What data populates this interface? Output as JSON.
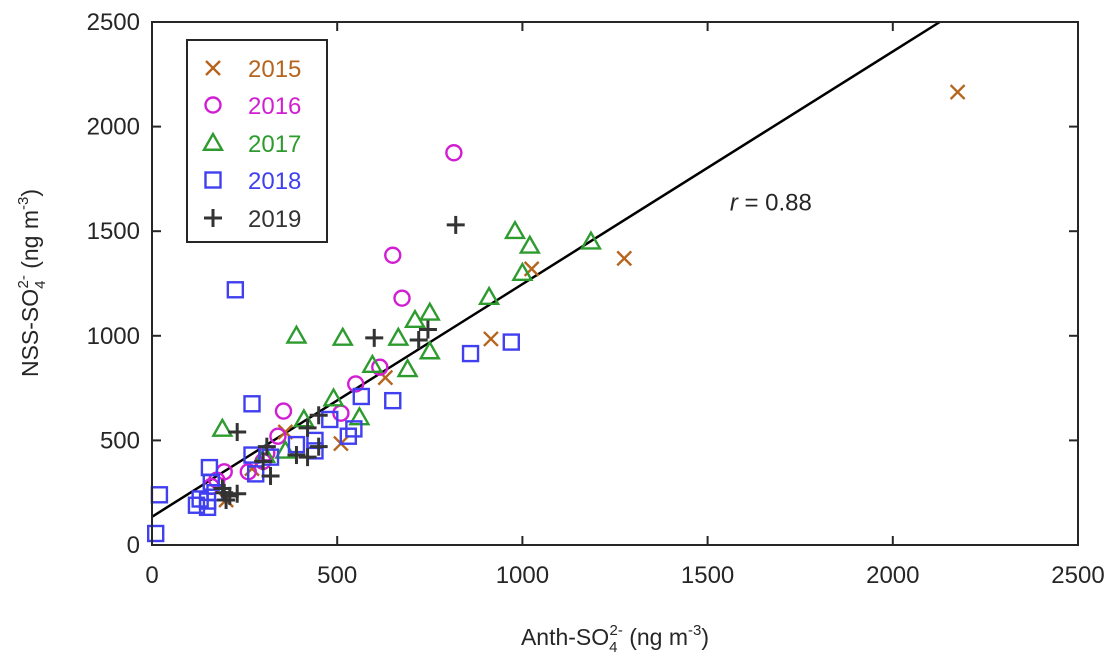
{
  "chart_data": {
    "type": "scatter",
    "xlabel": {
      "base": "Anth-SO",
      "sub": "4",
      "sup": "2-",
      "unit_pre": " (ng m",
      "unit_sup": "-3",
      "unit_post": ")"
    },
    "ylabel": {
      "base": "NSS-SO",
      "sub": "4",
      "sup": "2-",
      "unit_pre": " (ng m",
      "unit_sup": "-3",
      "unit_post": ")"
    },
    "xlim": [
      0,
      2500
    ],
    "ylim": [
      0,
      2500
    ],
    "xticks": [
      0,
      500,
      1000,
      1500,
      2000,
      2500
    ],
    "yticks": [
      0,
      500,
      1000,
      1500,
      2000,
      2500
    ],
    "grid": false,
    "legend_position": "top-left",
    "annotation": {
      "italic": "r",
      "rest": " = 0.88",
      "x": 1560,
      "y": 1600
    },
    "fit_line": {
      "intercept": 135,
      "slope": 1.112
    },
    "series": [
      {
        "name": "2015",
        "marker": "x",
        "color": "#B5651D",
        "points": [
          [
            2175,
            2165
          ],
          [
            1275,
            1370
          ],
          [
            1025,
            1320
          ],
          [
            915,
            985
          ],
          [
            630,
            800
          ],
          [
            510,
            485
          ],
          [
            360,
            540
          ],
          [
            270,
            365
          ],
          [
            200,
            215
          ]
        ]
      },
      {
        "name": "2016",
        "marker": "o",
        "color": "#D21ED2",
        "points": [
          [
            815,
            1875
          ],
          [
            650,
            1385
          ],
          [
            675,
            1180
          ],
          [
            615,
            850
          ],
          [
            550,
            770
          ],
          [
            510,
            630
          ],
          [
            355,
            640
          ],
          [
            340,
            520
          ],
          [
            310,
            440
          ],
          [
            300,
            400
          ],
          [
            260,
            350
          ],
          [
            195,
            350
          ],
          [
            175,
            310
          ],
          [
            160,
            280
          ]
        ]
      },
      {
        "name": "2017",
        "marker": "triangle",
        "color": "#2E9B2E",
        "points": [
          [
            1185,
            1450
          ],
          [
            1020,
            1430
          ],
          [
            980,
            1500
          ],
          [
            1000,
            1300
          ],
          [
            910,
            1185
          ],
          [
            750,
            1110
          ],
          [
            710,
            1075
          ],
          [
            665,
            990
          ],
          [
            750,
            925
          ],
          [
            690,
            840
          ],
          [
            595,
            860
          ],
          [
            515,
            990
          ],
          [
            390,
            1000
          ],
          [
            490,
            700
          ],
          [
            560,
            610
          ],
          [
            410,
            600
          ],
          [
            360,
            450
          ],
          [
            190,
            555
          ],
          [
            305,
            430
          ]
        ]
      },
      {
        "name": "2018",
        "marker": "square",
        "color": "#4040F0",
        "points": [
          [
            225,
            1220
          ],
          [
            270,
            675
          ],
          [
            970,
            970
          ],
          [
            860,
            915
          ],
          [
            650,
            690
          ],
          [
            565,
            710
          ],
          [
            545,
            555
          ],
          [
            530,
            520
          ],
          [
            480,
            600
          ],
          [
            440,
            500
          ],
          [
            440,
            450
          ],
          [
            390,
            480
          ],
          [
            320,
            420
          ],
          [
            280,
            340
          ],
          [
            270,
            430
          ],
          [
            155,
            370
          ],
          [
            160,
            300
          ],
          [
            170,
            250
          ],
          [
            150,
            210
          ],
          [
            130,
            220
          ],
          [
            150,
            180
          ],
          [
            120,
            190
          ],
          [
            20,
            240
          ],
          [
            10,
            55
          ]
        ]
      },
      {
        "name": "2019",
        "marker": "plus",
        "color": "#333333",
        "points": [
          [
            820,
            1530
          ],
          [
            745,
            1030
          ],
          [
            720,
            980
          ],
          [
            600,
            990
          ],
          [
            450,
            620
          ],
          [
            420,
            560
          ],
          [
            450,
            470
          ],
          [
            420,
            420
          ],
          [
            390,
            430
          ],
          [
            310,
            470
          ],
          [
            300,
            400
          ],
          [
            320,
            330
          ],
          [
            230,
            540
          ],
          [
            230,
            245
          ],
          [
            210,
            235
          ],
          [
            200,
            215
          ],
          [
            195,
            250
          ],
          [
            190,
            270
          ]
        ]
      }
    ]
  }
}
